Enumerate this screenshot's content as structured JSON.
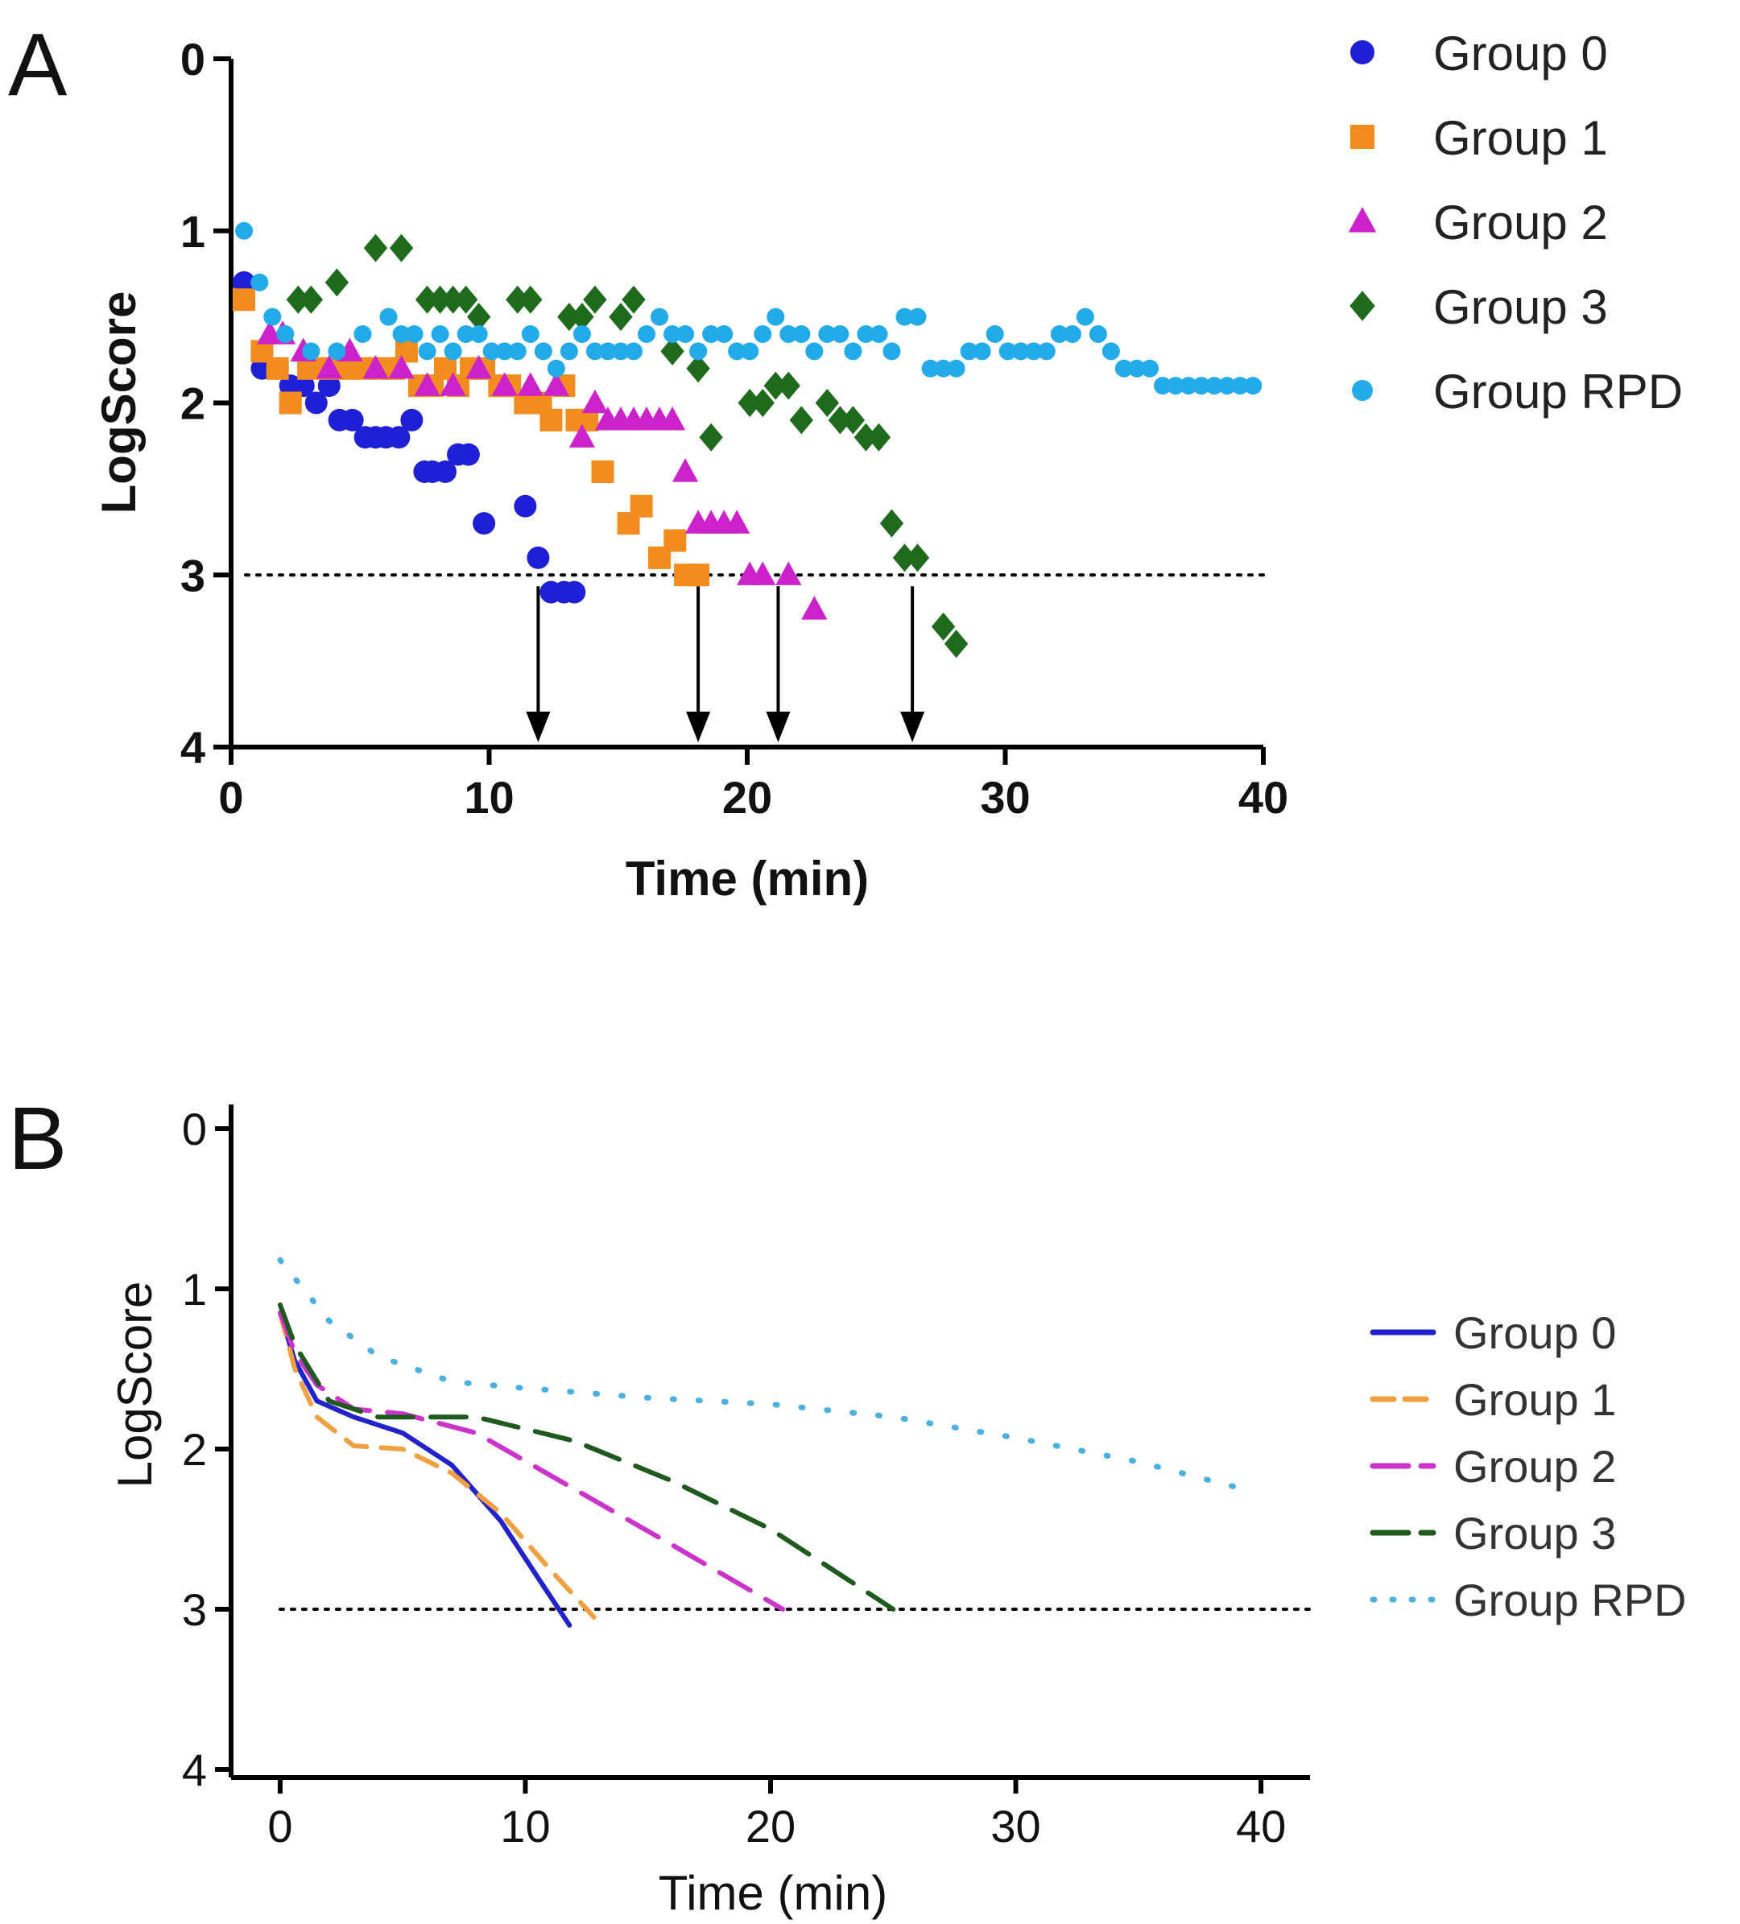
{
  "chart_data": [
    {
      "panel": "A",
      "type": "scatter",
      "xlabel": "Time (min)",
      "ylabel": "LogScore",
      "xlim": [
        0,
        40
      ],
      "ylim": [
        0,
        4
      ],
      "y_inverted": true,
      "xticks": [
        "0",
        "10",
        "20",
        "30",
        "40"
      ],
      "yticks": [
        "0",
        "1",
        "2",
        "3",
        "4"
      ],
      "threshold": 3,
      "arrows_at_time": [
        11.9,
        18.1,
        21.2,
        26.4
      ],
      "series": [
        {
          "name": "Group 0",
          "marker": "circle",
          "color": "#1f1fd6",
          "x": [
            0.5,
            1.2,
            1.8,
            2.3,
            2.8,
            3.3,
            3.8,
            4.2,
            4.7,
            5.2,
            5.6,
            6.0,
            6.5,
            7.0,
            7.5,
            7.8,
            8.3,
            8.8,
            9.2,
            9.8,
            11.4,
            11.9,
            12.4,
            12.9,
            13.3
          ],
          "y": [
            1.3,
            1.8,
            1.8,
            1.9,
            1.9,
            2.0,
            1.9,
            2.1,
            2.1,
            2.2,
            2.2,
            2.2,
            2.2,
            2.1,
            2.4,
            2.4,
            2.4,
            2.3,
            2.3,
            2.7,
            2.6,
            2.9,
            3.1,
            3.1,
            3.1
          ]
        },
        {
          "name": "Group 1",
          "marker": "square",
          "color": "#f28c1f",
          "x": [
            0.5,
            1.2,
            1.8,
            2.3,
            3.0,
            3.8,
            4.5,
            5.2,
            5.8,
            6.3,
            6.8,
            7.3,
            7.8,
            8.3,
            8.8,
            9.3,
            9.8,
            10.4,
            10.8,
            11.4,
            12.0,
            12.4,
            12.9,
            13.4,
            13.8,
            14.4,
            15.4,
            15.9,
            16.6,
            17.2,
            17.6,
            18.1
          ],
          "y": [
            1.4,
            1.7,
            1.8,
            2.0,
            1.8,
            1.8,
            1.8,
            1.8,
            1.8,
            1.8,
            1.7,
            1.9,
            1.9,
            1.8,
            1.9,
            1.8,
            1.8,
            1.9,
            1.9,
            2.0,
            2.0,
            2.1,
            1.9,
            2.1,
            2.1,
            2.4,
            2.7,
            2.6,
            2.9,
            2.8,
            3.0,
            3.0
          ]
        },
        {
          "name": "Group 2",
          "marker": "triangle",
          "color": "#cc22cc",
          "x": [
            1.5,
            2.0,
            2.8,
            3.8,
            4.6,
            5.6,
            6.6,
            7.6,
            8.6,
            9.6,
            10.6,
            11.6,
            12.6,
            13.6,
            14.1,
            14.6,
            15.1,
            15.6,
            16.1,
            16.6,
            17.1,
            17.6,
            18.1,
            18.6,
            19.1,
            19.6,
            20.1,
            20.6,
            21.6,
            22.6
          ],
          "y": [
            1.6,
            1.6,
            1.7,
            1.8,
            1.7,
            1.8,
            1.8,
            1.9,
            1.9,
            1.8,
            1.9,
            1.9,
            1.9,
            2.2,
            2.0,
            2.1,
            2.1,
            2.1,
            2.1,
            2.1,
            2.1,
            2.4,
            2.7,
            2.7,
            2.7,
            2.7,
            3.0,
            3.0,
            3.0,
            3.2
          ]
        },
        {
          "name": "Group 3",
          "marker": "diamond",
          "color": "#1e6b1e",
          "x": [
            2.6,
            3.1,
            4.1,
            5.6,
            6.6,
            7.6,
            8.1,
            8.6,
            9.1,
            9.6,
            11.1,
            11.6,
            13.1,
            13.6,
            14.1,
            15.1,
            15.6,
            17.1,
            18.1,
            18.6,
            20.1,
            20.6,
            21.1,
            21.6,
            22.1,
            23.1,
            23.6,
            24.1,
            24.6,
            25.1,
            25.6,
            26.1,
            26.6,
            27.6,
            28.1
          ],
          "y": [
            1.4,
            1.4,
            1.3,
            1.1,
            1.1,
            1.4,
            1.4,
            1.4,
            1.4,
            1.5,
            1.4,
            1.4,
            1.5,
            1.5,
            1.4,
            1.5,
            1.4,
            1.7,
            1.8,
            2.2,
            2.0,
            2.0,
            1.9,
            1.9,
            2.1,
            2.0,
            2.1,
            2.1,
            2.2,
            2.2,
            2.7,
            2.9,
            2.9,
            3.3,
            3.4
          ]
        },
        {
          "name": "Group RPD",
          "marker": "circle",
          "color": "#22aaea",
          "x": [
            0.5,
            1.1,
            1.6,
            2.1,
            3.1,
            4.1,
            5.1,
            6.1,
            6.6,
            7.1,
            7.6,
            8.1,
            8.6,
            9.1,
            9.6,
            10.1,
            10.6,
            11.1,
            11.6,
            12.1,
            12.6,
            13.1,
            13.6,
            14.1,
            14.6,
            15.1,
            15.6,
            16.1,
            16.6,
            17.1,
            17.6,
            18.1,
            18.6,
            19.1,
            19.6,
            20.1,
            20.6,
            21.1,
            21.6,
            22.1,
            22.6,
            23.1,
            23.6,
            24.1,
            24.6,
            25.1,
            25.6,
            26.1,
            26.6,
            27.1,
            27.6,
            28.1,
            28.6,
            29.1,
            29.6,
            30.1,
            30.6,
            31.1,
            31.6,
            32.1,
            32.6,
            33.1,
            33.6,
            34.1,
            34.6,
            35.1,
            35.6,
            36.1,
            36.6,
            37.1,
            37.6,
            38.1,
            38.6,
            39.1,
            39.6
          ],
          "y": [
            1.0,
            1.3,
            1.5,
            1.6,
            1.7,
            1.7,
            1.6,
            1.5,
            1.6,
            1.6,
            1.7,
            1.6,
            1.7,
            1.6,
            1.6,
            1.7,
            1.7,
            1.7,
            1.6,
            1.7,
            1.8,
            1.7,
            1.6,
            1.7,
            1.7,
            1.7,
            1.7,
            1.6,
            1.5,
            1.6,
            1.6,
            1.7,
            1.6,
            1.6,
            1.7,
            1.7,
            1.6,
            1.5,
            1.6,
            1.6,
            1.7,
            1.6,
            1.6,
            1.7,
            1.6,
            1.6,
            1.7,
            1.5,
            1.5,
            1.8,
            1.8,
            1.8,
            1.7,
            1.7,
            1.6,
            1.7,
            1.7,
            1.7,
            1.7,
            1.6,
            1.6,
            1.5,
            1.6,
            1.7,
            1.8,
            1.8,
            1.8,
            1.9,
            1.9,
            1.9,
            1.9,
            1.9,
            1.9,
            1.9,
            1.9
          ]
        }
      ]
    },
    {
      "panel": "B",
      "type": "line",
      "xlabel": "Time (min)",
      "ylabel": "LogScore",
      "xlim": [
        -2,
        42
      ],
      "ylim": [
        0,
        4
      ],
      "y_inverted": true,
      "xticks": [
        "0",
        "10",
        "20",
        "30",
        "40"
      ],
      "yticks": [
        "0",
        "1",
        "2",
        "3",
        "4"
      ],
      "threshold": 3,
      "series": [
        {
          "name": "Group 0",
          "style": "solid",
          "color": "#2222cc",
          "x": [
            0,
            0.6,
            1.5,
            3,
            5,
            7,
            9,
            10.5,
            11.8
          ],
          "y": [
            1.15,
            1.45,
            1.7,
            1.8,
            1.9,
            2.1,
            2.45,
            2.8,
            3.1
          ]
        },
        {
          "name": "Group 1",
          "style": "dashed",
          "color": "#f0a040",
          "x": [
            0,
            0.6,
            1.5,
            3,
            5,
            7,
            9,
            11,
            12.8
          ],
          "y": [
            1.15,
            1.5,
            1.8,
            1.98,
            2.0,
            2.15,
            2.4,
            2.75,
            3.05
          ]
        },
        {
          "name": "Group 2",
          "style": "long-dash",
          "color": "#cc33cc",
          "x": [
            0,
            0.6,
            1.5,
            3,
            5,
            8,
            12,
            16,
            20.5
          ],
          "y": [
            1.15,
            1.4,
            1.6,
            1.75,
            1.78,
            1.9,
            2.25,
            2.6,
            3.0
          ]
        },
        {
          "name": "Group 3",
          "style": "long-dash",
          "color": "#1e5a1e",
          "x": [
            0,
            0.6,
            2,
            4,
            8,
            12,
            16,
            20,
            25
          ],
          "y": [
            1.1,
            1.35,
            1.7,
            1.8,
            1.8,
            1.95,
            2.2,
            2.5,
            3.0
          ]
        },
        {
          "name": "Group RPD",
          "style": "dotted",
          "color": "#4ab0e0",
          "x": [
            0,
            2,
            4,
            7,
            10,
            15,
            20,
            25,
            30,
            35,
            39.3
          ],
          "y": [
            0.82,
            1.2,
            1.42,
            1.58,
            1.62,
            1.68,
            1.72,
            1.8,
            1.93,
            2.08,
            2.25
          ]
        }
      ]
    }
  ],
  "labels": {
    "panel_a": "A",
    "panel_b": "B",
    "a_ylabel": "LogScore",
    "a_xlabel": "Time (min)",
    "b_ylabel": "LogScore",
    "b_xlabel": "Time (min)"
  },
  "legend_a": [
    {
      "label": "Group 0",
      "marker": "circle",
      "color": "#1f1fd6"
    },
    {
      "label": "Group 1",
      "marker": "square",
      "color": "#f28c1f"
    },
    {
      "label": "Group 2",
      "marker": "triangle",
      "color": "#cc22cc"
    },
    {
      "label": "Group 3",
      "marker": "diamond",
      "color": "#1e6b1e"
    },
    {
      "label": "Group RPD",
      "marker": "circle",
      "color": "#22aaea"
    }
  ],
  "legend_b": [
    {
      "label": "Group 0",
      "style": "solid",
      "color": "#2222cc"
    },
    {
      "label": "Group 1",
      "style": "dashed",
      "color": "#f0a040"
    },
    {
      "label": "Group 2",
      "style": "long-dash",
      "color": "#cc33cc"
    },
    {
      "label": "Group 3",
      "style": "long-dash",
      "color": "#1e5a1e"
    },
    {
      "label": "Group RPD",
      "style": "dotted",
      "color": "#4ab0e0"
    }
  ]
}
